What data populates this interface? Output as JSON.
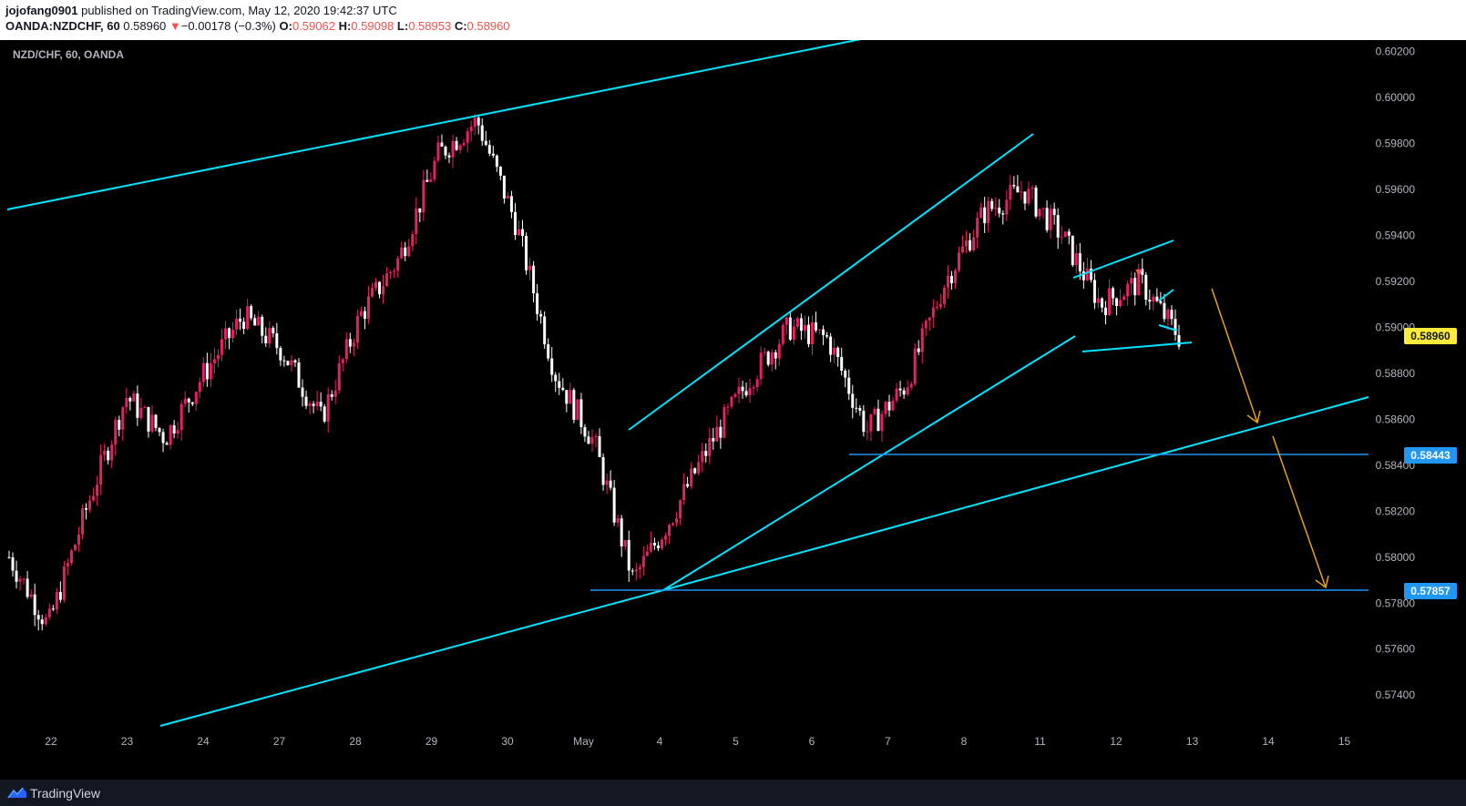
{
  "header": {
    "author": "jojofang0901",
    "published_text": "published on TradingView.com, May 12, 2020 19:42:37 UTC",
    "symbol": "OANDA:NZDCHF, 60",
    "last_price": "0.58960",
    "change_arrow": "▼",
    "change": "−0.00178 (−0.3%)",
    "o_label": "O:",
    "o_value": "0.59062",
    "h_label": "H:",
    "h_value": "0.59098",
    "l_label": "L:",
    "l_value": "0.58953",
    "c_label": "C:",
    "c_value": "0.58960"
  },
  "chart_title": "NZD/CHF, 60, OANDA",
  "footer": {
    "brand": "TradingView"
  },
  "colors": {
    "up": "#e91e63",
    "down": "#ffffff",
    "trendline": "#00e5ff",
    "hline": "#2196f3",
    "arrow": "#e6a21a",
    "current_label": "#ffeb3b",
    "level_label": "#2196f3"
  },
  "price_labels": {
    "current": "0.58960",
    "level1": "0.58443",
    "level2": "0.57857"
  },
  "chart_data": {
    "type": "candlestick",
    "title": "NZD/CHF, 60, OANDA",
    "ylim": [
      0.5727,
      0.6025
    ],
    "y_ticks": [
      "0.60200",
      "0.60000",
      "0.59800",
      "0.59600",
      "0.59400",
      "0.59200",
      "0.59000",
      "0.58800",
      "0.58600",
      "0.58400",
      "0.58200",
      "0.58000",
      "0.57800",
      "0.57600",
      "0.57400"
    ],
    "x_ticks": [
      "22",
      "23",
      "24",
      "27",
      "28",
      "29",
      "30",
      "May",
      "4",
      "5",
      "6",
      "7",
      "8",
      "11",
      "12",
      "13",
      "14",
      "15"
    ],
    "price_path": [
      {
        "day": "22",
        "close": 0.58
      },
      {
        "day": "23",
        "close": 0.577
      },
      {
        "day": "23",
        "close": 0.5822
      },
      {
        "day": "24",
        "close": 0.587
      },
      {
        "day": "24",
        "close": 0.5852
      },
      {
        "day": "27",
        "close": 0.588
      },
      {
        "day": "27",
        "close": 0.5905
      },
      {
        "day": "28",
        "close": 0.589
      },
      {
        "day": "28",
        "close": 0.586
      },
      {
        "day": "29",
        "close": 0.5905
      },
      {
        "day": "29",
        "close": 0.593
      },
      {
        "day": "30",
        "close": 0.5975
      },
      {
        "day": "30",
        "close": 0.599
      },
      {
        "day": "30",
        "close": 0.5945
      },
      {
        "day": "May",
        "close": 0.588
      },
      {
        "day": "May",
        "close": 0.585
      },
      {
        "day": "4",
        "close": 0.579
      },
      {
        "day": "4",
        "close": 0.5818
      },
      {
        "day": "5",
        "close": 0.585
      },
      {
        "day": "5",
        "close": 0.5878
      },
      {
        "day": "6",
        "close": 0.59
      },
      {
        "day": "6",
        "close": 0.5895
      },
      {
        "day": "7",
        "close": 0.5855
      },
      {
        "day": "7",
        "close": 0.5875
      },
      {
        "day": "8",
        "close": 0.592
      },
      {
        "day": "8",
        "close": 0.595
      },
      {
        "day": "11",
        "close": 0.596
      },
      {
        "day": "11",
        "close": 0.594
      },
      {
        "day": "12",
        "close": 0.591
      },
      {
        "day": "12",
        "close": 0.592
      },
      {
        "day": "12",
        "close": 0.5896
      }
    ],
    "horizontal_levels": [
      0.58443,
      0.57857
    ],
    "current_price": 0.5896,
    "grid": false,
    "legend": "none"
  }
}
